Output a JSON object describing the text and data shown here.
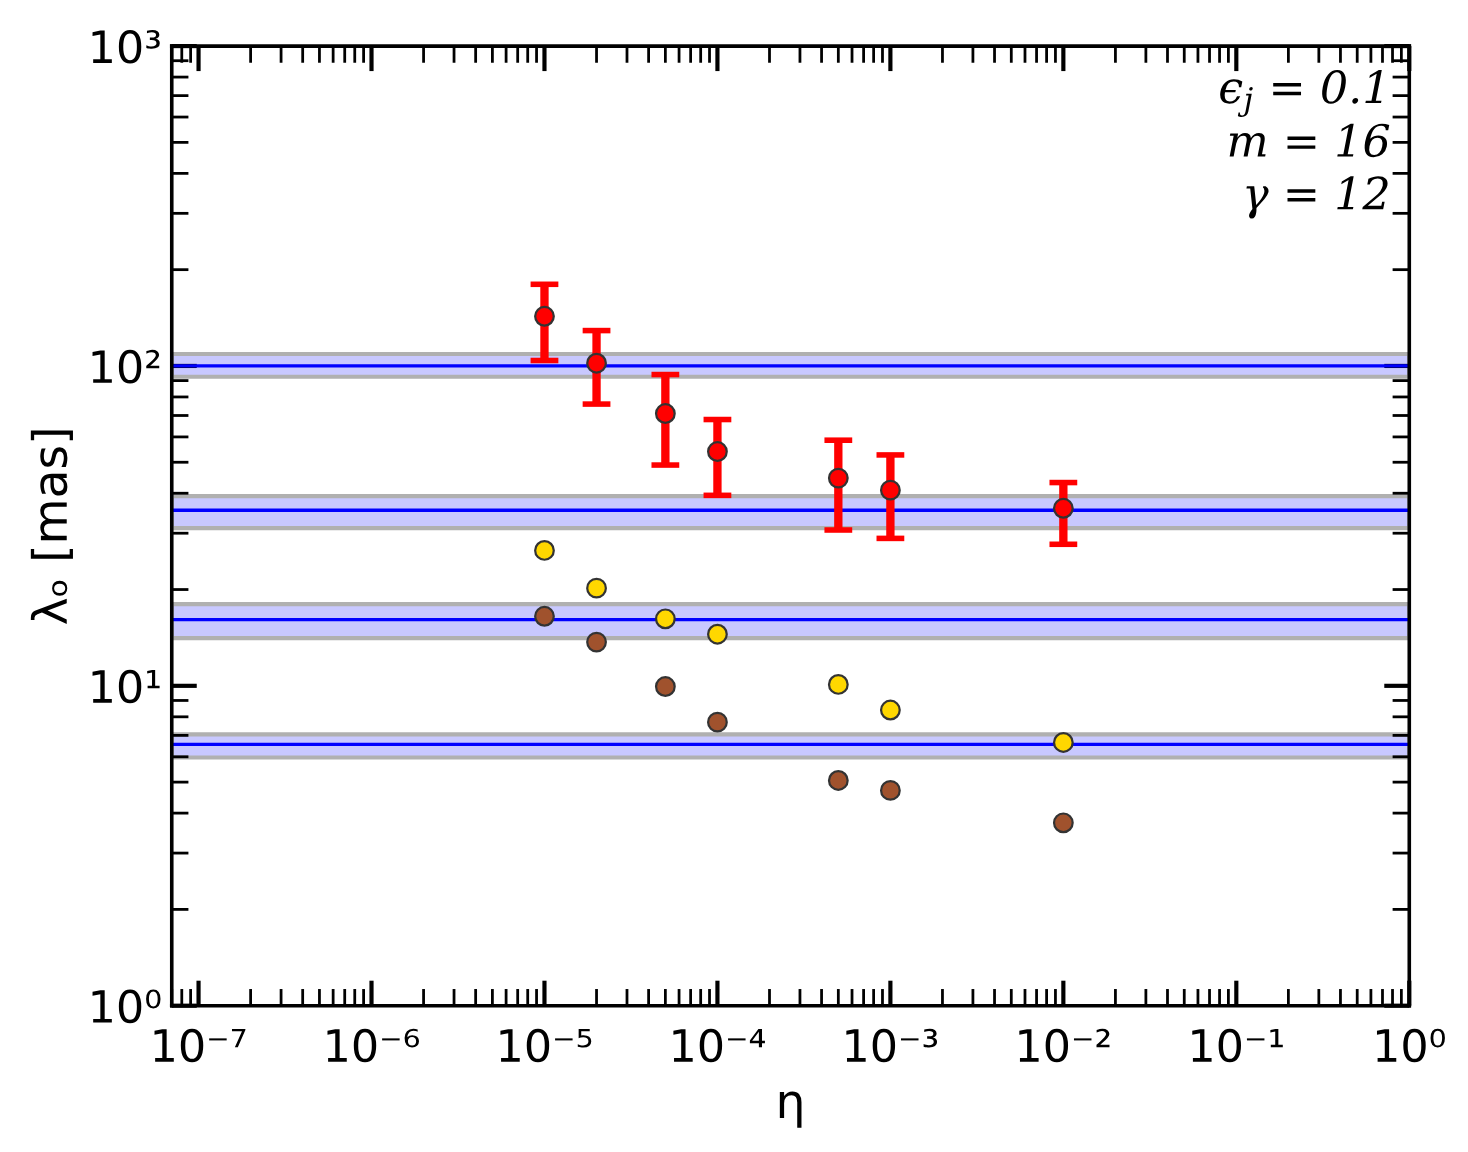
{
  "chart_data": {
    "type": "scatter",
    "xlabel": "η",
    "ylabel": "λₒ [mas]",
    "log": "xy",
    "xlim": [
      7e-08,
      1
    ],
    "ylim": [
      1,
      1000
    ],
    "xticks": [
      {
        "value": 1e-07,
        "label": "10⁻⁷"
      },
      {
        "value": 1e-06,
        "label": "10⁻⁶"
      },
      {
        "value": 1e-05,
        "label": "10⁻⁵"
      },
      {
        "value": 0.0001,
        "label": "10⁻⁴"
      },
      {
        "value": 0.001,
        "label": "10⁻³"
      },
      {
        "value": 0.01,
        "label": "10⁻²"
      },
      {
        "value": 0.1,
        "label": "10⁻¹"
      },
      {
        "value": 1,
        "label": "10⁰"
      }
    ],
    "yticks": [
      {
        "value": 1,
        "label": "10⁰"
      },
      {
        "value": 10,
        "label": "10¹"
      },
      {
        "value": 100,
        "label": "10²"
      },
      {
        "value": 1000,
        "label": "10³"
      }
    ],
    "marker": "circle",
    "grid": false,
    "legend": false,
    "series": [
      {
        "color": "#ff0000",
        "x": [
          1e-05,
          2e-05,
          5e-05,
          0.0001,
          0.0005,
          0.001,
          0.01
        ],
        "values": [
          143,
          102,
          71,
          54,
          44.6,
          40.9,
          35.9
        ],
        "errors": [
          [
            104,
            180
          ],
          [
            76,
            129
          ],
          [
            49,
            94
          ],
          [
            39.4,
            68
          ],
          [
            30.7,
            58.6
          ],
          [
            28.9,
            52.7
          ],
          [
            27.7,
            43.2
          ]
        ]
      },
      {
        "color": "#ffd700",
        "x": [
          1e-05,
          2e-05,
          5e-05,
          0.0001,
          0.0005,
          0.001,
          0.01
        ],
        "values": [
          26.5,
          20.2,
          16.2,
          14.5,
          10.1,
          8.4,
          6.65
        ]
      },
      {
        "color": "#a0522d",
        "x": [
          1e-05,
          2e-05,
          5e-05,
          0.0001,
          0.0005,
          0.001,
          0.01
        ],
        "values": [
          16.5,
          13.7,
          9.95,
          7.7,
          5.06,
          4.71,
          3.73
        ]
      }
    ],
    "ref_lines": [
      {
        "axis": "y",
        "value": 100,
        "color": "#0000ff"
      },
      {
        "axis": "y",
        "value": 35.4,
        "color": "#0000ff"
      },
      {
        "axis": "y",
        "value": 16.1,
        "color": "#0000ff"
      },
      {
        "axis": "y",
        "value": 6.56,
        "color": "#0000ff"
      }
    ],
    "bands": [
      {
        "axis": "y",
        "from": 92.5,
        "to": 109,
        "color": "#c8c8ff"
      },
      {
        "axis": "y",
        "from": 31.1,
        "to": 39.2,
        "color": "#c8c8ff"
      },
      {
        "axis": "y",
        "from": 14.1,
        "to": 18.0,
        "color": "#c8c8ff"
      },
      {
        "axis": "y",
        "from": 5.97,
        "to": 7.05,
        "color": "#c8c8ff"
      }
    ],
    "annotations": [
      "ϵ$_{j}$ = 0.1",
      "m = 16",
      "γ = 12"
    ]
  }
}
